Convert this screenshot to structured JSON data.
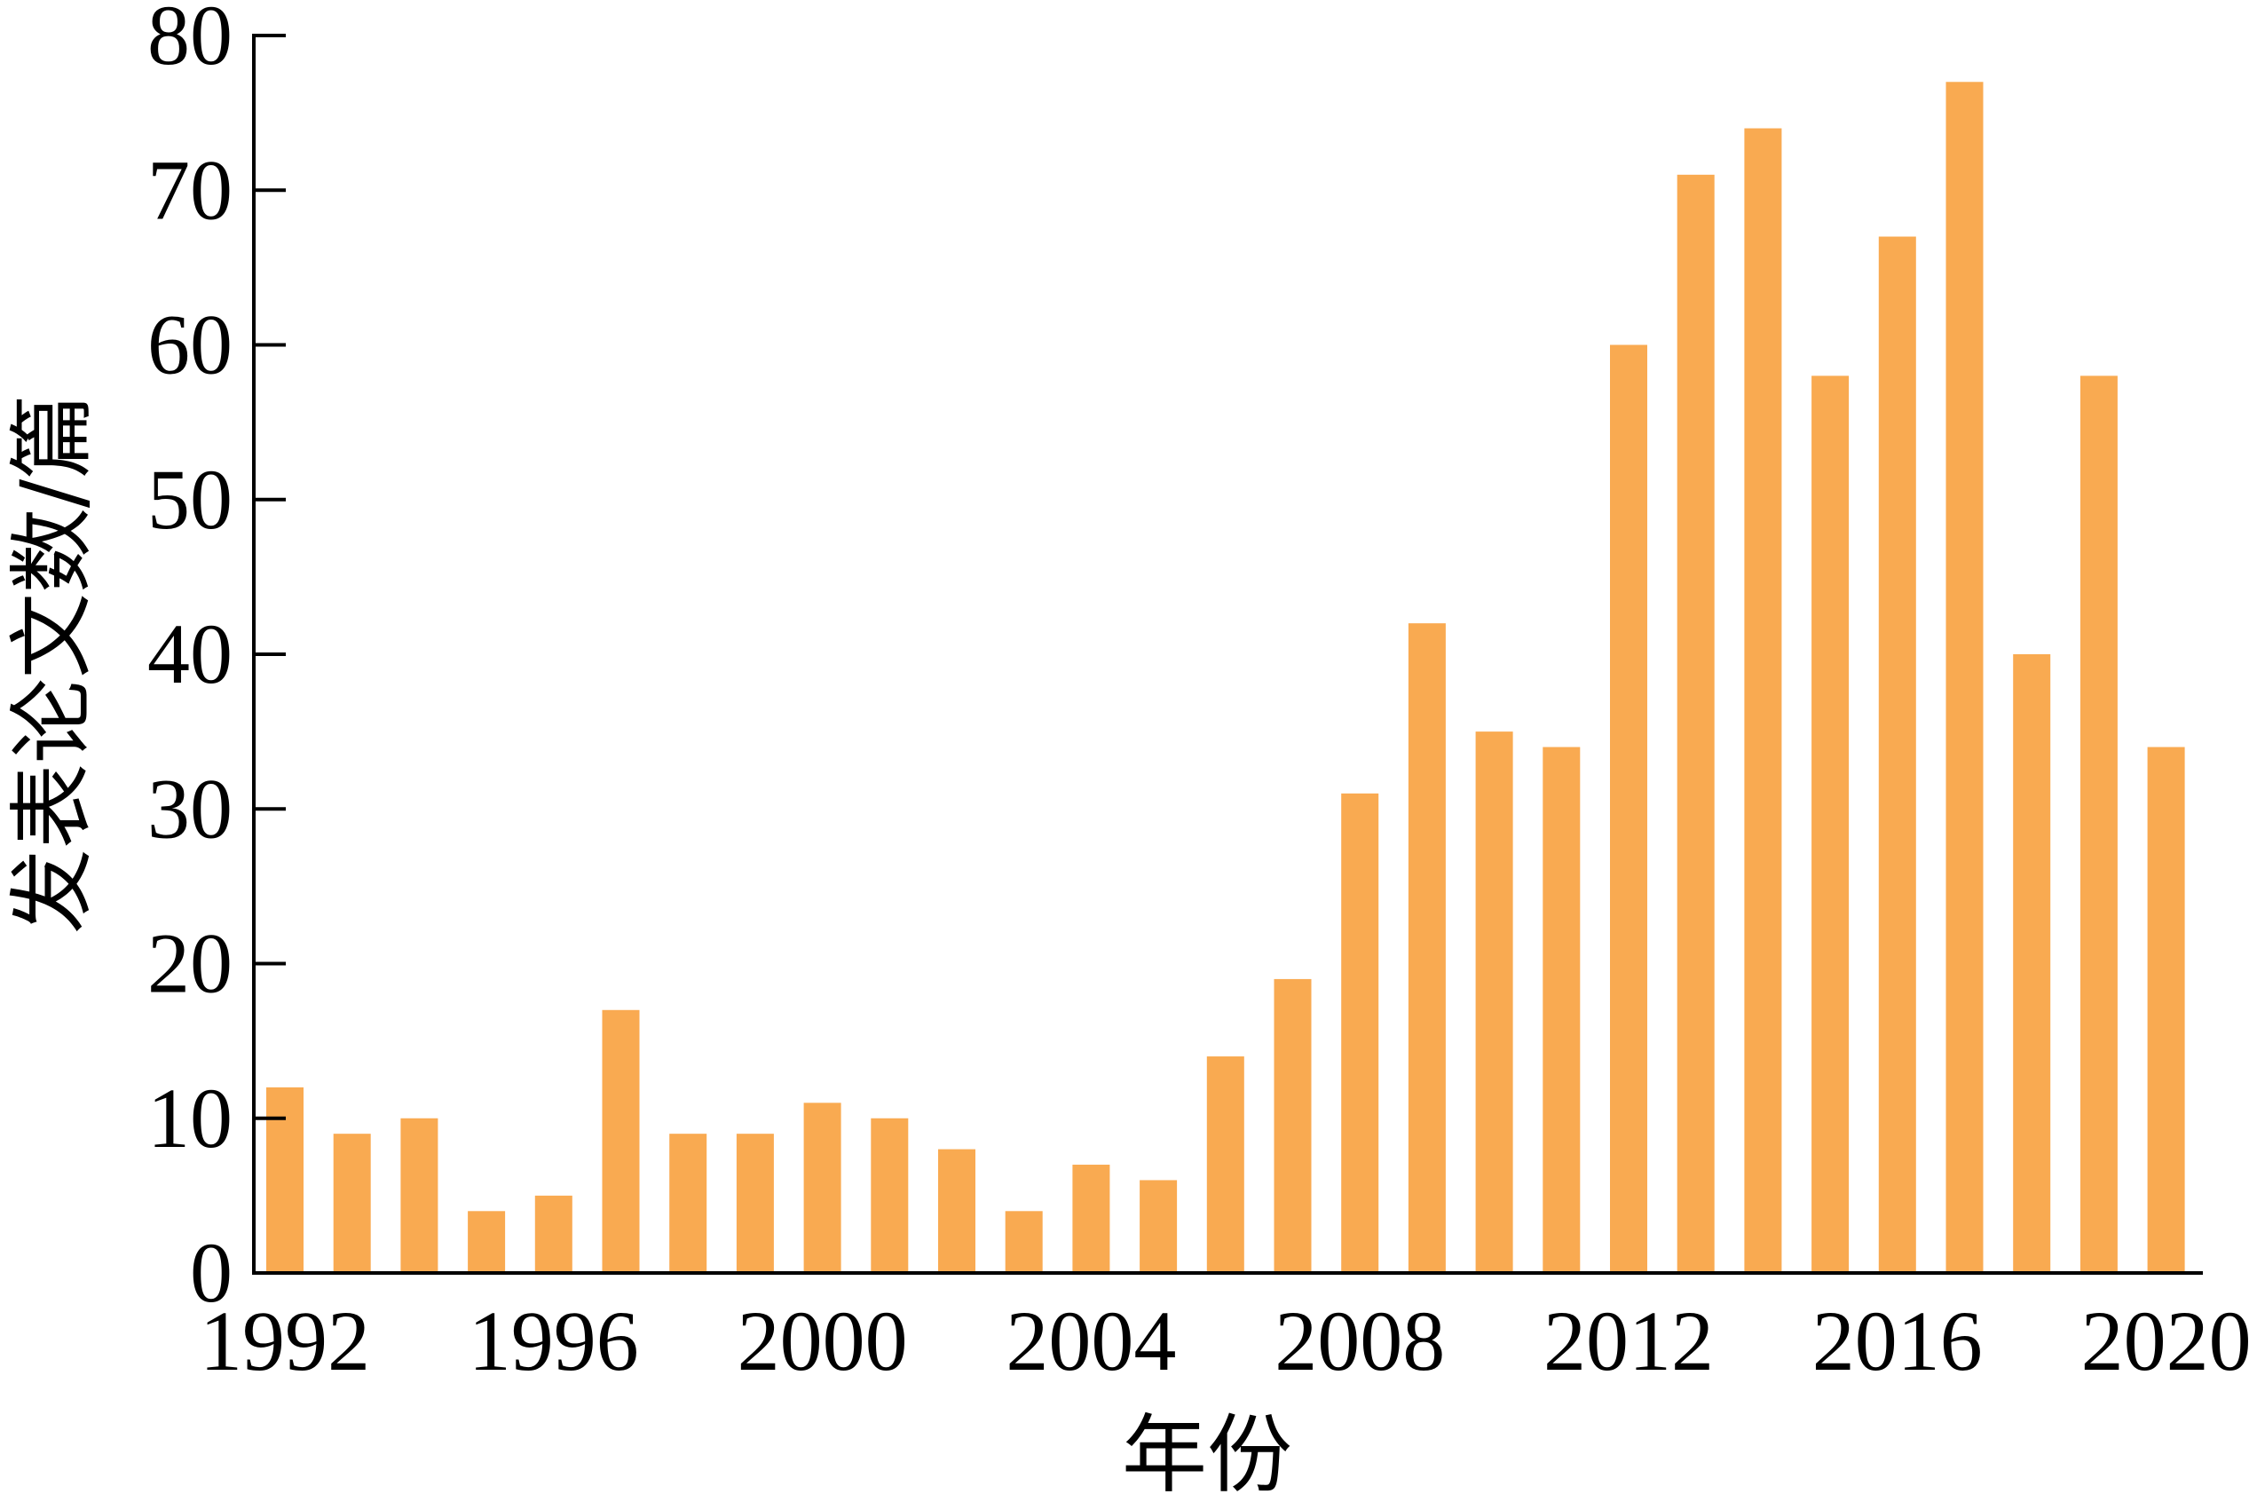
{
  "chart_data": {
    "type": "bar",
    "xlabel": "年份",
    "ylabel": "发表论文数/篇",
    "ylim": [
      0,
      80
    ],
    "yticks": [
      0,
      10,
      20,
      30,
      40,
      50,
      60,
      70,
      80
    ],
    "x_tick_labels": [
      "1992",
      "1996",
      "2000",
      "2004",
      "2008",
      "2012",
      "2016",
      "2020"
    ],
    "categories": [
      "1992",
      "1993",
      "1994",
      "1995",
      "1996",
      "1997",
      "1998",
      "1999",
      "2000",
      "2001",
      "2002",
      "2003",
      "2004",
      "2005",
      "2006",
      "2007",
      "2008",
      "2009",
      "2010",
      "2011",
      "2012",
      "2013",
      "2014",
      "2015",
      "2016",
      "2017",
      "2018",
      "2019",
      "2020"
    ],
    "values": [
      12,
      9,
      10,
      4,
      5,
      17,
      9,
      9,
      11,
      10,
      8,
      4,
      7,
      6,
      14,
      19,
      31,
      42,
      35,
      34,
      60,
      71,
      74,
      58,
      67,
      77,
      40,
      58,
      34
    ],
    "bar_color": "#F9AA51",
    "grid": false
  }
}
